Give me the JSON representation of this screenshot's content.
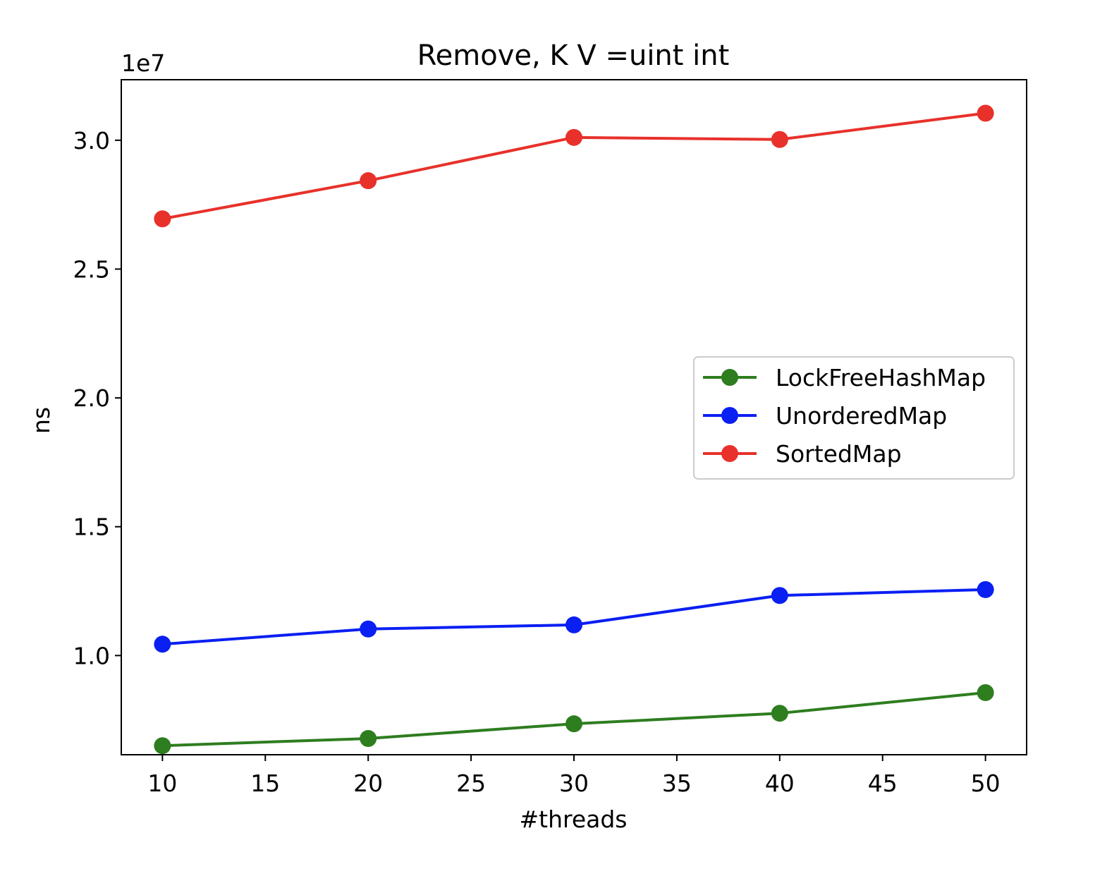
{
  "chart_data": {
    "type": "line",
    "title": "Remove, K V =uint int",
    "xlabel": "#threads",
    "ylabel": "ns",
    "y_offset_label": "1e7",
    "xlim": [
      8,
      52
    ],
    "ylim": [
      6150000,
      32350000
    ],
    "x_ticks": [
      10,
      15,
      20,
      25,
      30,
      35,
      40,
      45,
      50
    ],
    "x_tick_labels": [
      "10",
      "15",
      "20",
      "25",
      "30",
      "35",
      "40",
      "45",
      "50"
    ],
    "y_ticks": [
      10000000,
      15000000,
      20000000,
      25000000,
      30000000
    ],
    "y_tick_labels": [
      "1.0",
      "1.5",
      "2.0",
      "2.5",
      "3.0"
    ],
    "grid": false,
    "legend_position": "center-right",
    "x": [
      10,
      20,
      30,
      40,
      50
    ],
    "series": [
      {
        "name": "LockFreeHashMap",
        "color": "#2e7d1f",
        "values": [
          6500000,
          6780000,
          7350000,
          7760000,
          8560000
        ]
      },
      {
        "name": "UnorderedMap",
        "color": "#0a1ff2",
        "values": [
          10440000,
          11030000,
          11190000,
          12330000,
          12560000
        ]
      },
      {
        "name": "SortedMap",
        "color": "#e8312a",
        "values": [
          26950000,
          28430000,
          30110000,
          30030000,
          31050000
        ]
      }
    ]
  }
}
